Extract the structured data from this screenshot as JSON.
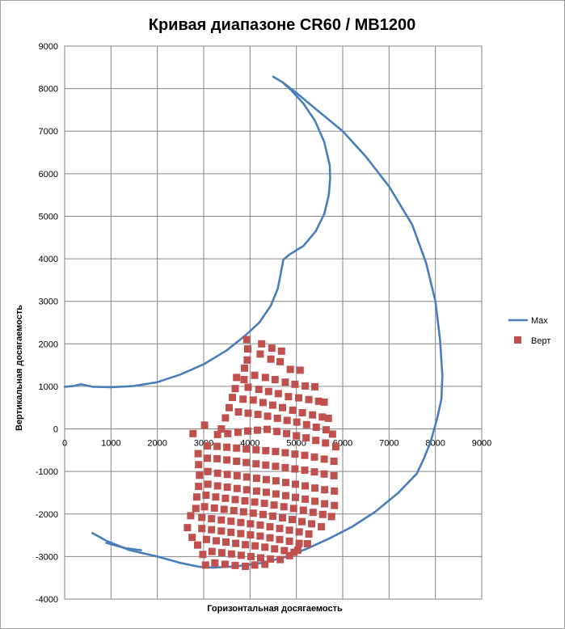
{
  "chart_data": {
    "type": "scatter",
    "title": "Кривая диапазоне CR60 / MB1200",
    "xlabel": "Горизонтальная  досягаемость",
    "ylabel": "Вертикальная  досягаемость",
    "xlim": [
      0,
      9000
    ],
    "ylim": [
      -4000,
      9000
    ],
    "x_ticks": [
      "0",
      "1000",
      "2000",
      "3000",
      "4000",
      "5000",
      "6000",
      "7000",
      "8000",
      "9000"
    ],
    "y_ticks": [
      "9000",
      "8000",
      "7000",
      "6000",
      "5000",
      "4000",
      "3000",
      "2000",
      "1000",
      "0",
      "-1000",
      "-2000",
      "-3000",
      "-4000"
    ],
    "grid": true,
    "legend_position": "right",
    "series": [
      {
        "name": "Max",
        "type": "line",
        "color": "#4a7ebb",
        "points": [
          [
            4500,
            8280
          ],
          [
            4700,
            8150
          ],
          [
            4900,
            7950
          ],
          [
            5150,
            7650
          ],
          [
            5400,
            7250
          ],
          [
            5600,
            6750
          ],
          [
            5720,
            6200
          ],
          [
            5730,
            5900
          ],
          [
            5700,
            5500
          ],
          [
            5600,
            5050
          ],
          [
            5420,
            4650
          ],
          [
            5150,
            4300
          ],
          [
            4850,
            4100
          ],
          [
            4720,
            3980
          ],
          [
            4680,
            3750
          ],
          [
            4600,
            3300
          ],
          [
            4450,
            2900
          ],
          [
            4200,
            2500
          ],
          [
            3900,
            2200
          ],
          [
            3500,
            1850
          ],
          [
            3000,
            1520
          ],
          [
            2500,
            1280
          ],
          [
            2000,
            1100
          ],
          [
            1500,
            1010
          ],
          [
            1000,
            980
          ],
          [
            600,
            990
          ],
          [
            350,
            1050
          ],
          [
            200,
            1010
          ],
          [
            0,
            990
          ]
        ]
      },
      {
        "name": "",
        "type": "line",
        "color": "#4a7ebb",
        "points": [
          [
            4700,
            8150
          ],
          [
            5000,
            7900
          ],
          [
            5500,
            7450
          ],
          [
            6000,
            7000
          ],
          [
            6500,
            6400
          ],
          [
            7000,
            5700
          ],
          [
            7500,
            4800
          ],
          [
            7800,
            3900
          ],
          [
            8000,
            3000
          ],
          [
            8100,
            2100
          ],
          [
            8150,
            1250
          ],
          [
            8130,
            700
          ],
          [
            8050,
            300
          ],
          [
            7900,
            -300
          ],
          [
            7750,
            -700
          ],
          [
            7600,
            -1050
          ],
          [
            7200,
            -1500
          ],
          [
            6700,
            -1950
          ],
          [
            6200,
            -2300
          ],
          [
            5700,
            -2580
          ],
          [
            5200,
            -2830
          ],
          [
            4700,
            -3030
          ],
          [
            4200,
            -3160
          ],
          [
            3700,
            -3230
          ],
          [
            3200,
            -3260
          ],
          [
            2900,
            -3240
          ],
          [
            2500,
            -3150
          ],
          [
            2000,
            -3000
          ],
          [
            1400,
            -2850
          ],
          [
            900,
            -2630
          ],
          [
            600,
            -2450
          ]
        ]
      },
      {
        "name": "",
        "type": "line",
        "color": "#4a7ebb",
        "points": [
          [
            900,
            -2680
          ],
          [
            1300,
            -2800
          ],
          [
            1650,
            -2850
          ]
        ]
      },
      {
        "name": "Верт",
        "type": "scatter",
        "color": "#c0504d",
        "points": [
          [
            3930,
            2100
          ],
          [
            3950,
            1880
          ],
          [
            3940,
            1620
          ],
          [
            3880,
            1430
          ],
          [
            3870,
            1160
          ],
          [
            4250,
            2000
          ],
          [
            4470,
            1900
          ],
          [
            4680,
            1830
          ],
          [
            4220,
            1760
          ],
          [
            4450,
            1640
          ],
          [
            4650,
            1580
          ],
          [
            4870,
            1400
          ],
          [
            5080,
            1380
          ],
          [
            4100,
            1260
          ],
          [
            4330,
            1210
          ],
          [
            4540,
            1160
          ],
          [
            4760,
            1100
          ],
          [
            4970,
            1050
          ],
          [
            5190,
            1010
          ],
          [
            5400,
            990
          ],
          [
            3710,
            1210
          ],
          [
            3680,
            950
          ],
          [
            3620,
            740
          ],
          [
            3550,
            500
          ],
          [
            3470,
            260
          ],
          [
            3380,
            0
          ],
          [
            3960,
            980
          ],
          [
            4190,
            930
          ],
          [
            4400,
            880
          ],
          [
            4610,
            830
          ],
          [
            4830,
            760
          ],
          [
            5050,
            730
          ],
          [
            5270,
            690
          ],
          [
            5480,
            650
          ],
          [
            5600,
            630
          ],
          [
            3850,
            700
          ],
          [
            4070,
            680
          ],
          [
            4280,
            620
          ],
          [
            4490,
            560
          ],
          [
            4700,
            500
          ],
          [
            4920,
            440
          ],
          [
            5130,
            380
          ],
          [
            5350,
            330
          ],
          [
            5560,
            280
          ],
          [
            5690,
            250
          ],
          [
            3750,
            400
          ],
          [
            3960,
            370
          ],
          [
            4170,
            340
          ],
          [
            4380,
            300
          ],
          [
            4590,
            250
          ],
          [
            4800,
            200
          ],
          [
            5010,
            160
          ],
          [
            5220,
            100
          ],
          [
            5430,
            40
          ],
          [
            5640,
            -20
          ],
          [
            5780,
            -120
          ],
          [
            3020,
            90
          ],
          [
            3300,
            -130
          ],
          [
            3520,
            -110
          ],
          [
            3740,
            -80
          ],
          [
            3950,
            -50
          ],
          [
            4160,
            -30
          ],
          [
            4370,
            -10
          ],
          [
            4580,
            -60
          ],
          [
            4790,
            -110
          ],
          [
            5000,
            -160
          ],
          [
            5210,
            -210
          ],
          [
            5420,
            -270
          ],
          [
            5630,
            -330
          ],
          [
            5850,
            -420
          ],
          [
            2770,
            -110
          ],
          [
            2880,
            -580
          ],
          [
            3080,
            -400
          ],
          [
            3290,
            -410
          ],
          [
            3500,
            -430
          ],
          [
            3710,
            -450
          ],
          [
            3920,
            -470
          ],
          [
            4130,
            -490
          ],
          [
            4340,
            -510
          ],
          [
            4550,
            -530
          ],
          [
            4760,
            -560
          ],
          [
            4970,
            -590
          ],
          [
            5180,
            -620
          ],
          [
            5390,
            -660
          ],
          [
            5600,
            -710
          ],
          [
            5810,
            -760
          ],
          [
            2890,
            -840
          ],
          [
            3080,
            -690
          ],
          [
            3290,
            -700
          ],
          [
            3500,
            -730
          ],
          [
            3710,
            -760
          ],
          [
            3920,
            -790
          ],
          [
            4130,
            -820
          ],
          [
            4340,
            -850
          ],
          [
            4550,
            -880
          ],
          [
            4760,
            -910
          ],
          [
            4970,
            -940
          ],
          [
            5180,
            -970
          ],
          [
            5390,
            -1010
          ],
          [
            5600,
            -1060
          ],
          [
            5810,
            -1100
          ],
          [
            2910,
            -1090
          ],
          [
            3090,
            -1000
          ],
          [
            3300,
            -1040
          ],
          [
            3510,
            -1070
          ],
          [
            3720,
            -1100
          ],
          [
            3930,
            -1130
          ],
          [
            4140,
            -1160
          ],
          [
            4350,
            -1190
          ],
          [
            4560,
            -1220
          ],
          [
            4770,
            -1260
          ],
          [
            4980,
            -1300
          ],
          [
            5190,
            -1340
          ],
          [
            5400,
            -1390
          ],
          [
            5610,
            -1430
          ],
          [
            5820,
            -1460
          ],
          [
            2890,
            -1350
          ],
          [
            3090,
            -1300
          ],
          [
            3300,
            -1340
          ],
          [
            3510,
            -1370
          ],
          [
            3720,
            -1400
          ],
          [
            3930,
            -1430
          ],
          [
            4140,
            -1460
          ],
          [
            4350,
            -1490
          ],
          [
            4560,
            -1530
          ],
          [
            4770,
            -1570
          ],
          [
            4980,
            -1610
          ],
          [
            5190,
            -1650
          ],
          [
            5400,
            -1700
          ],
          [
            5610,
            -1760
          ],
          [
            5820,
            -1800
          ],
          [
            2850,
            -1600
          ],
          [
            3050,
            -1560
          ],
          [
            3260,
            -1600
          ],
          [
            3470,
            -1630
          ],
          [
            3680,
            -1660
          ],
          [
            3890,
            -1690
          ],
          [
            4100,
            -1720
          ],
          [
            4310,
            -1750
          ],
          [
            4520,
            -1790
          ],
          [
            4730,
            -1830
          ],
          [
            4940,
            -1870
          ],
          [
            5150,
            -1910
          ],
          [
            5360,
            -1960
          ],
          [
            5570,
            -2010
          ],
          [
            5760,
            -2060
          ],
          [
            2830,
            -1870
          ],
          [
            3020,
            -1830
          ],
          [
            3230,
            -1860
          ],
          [
            3440,
            -1890
          ],
          [
            3650,
            -1920
          ],
          [
            3860,
            -1950
          ],
          [
            4070,
            -1980
          ],
          [
            4280,
            -2010
          ],
          [
            4490,
            -2050
          ],
          [
            4700,
            -2090
          ],
          [
            4910,
            -2130
          ],
          [
            5120,
            -2180
          ],
          [
            5330,
            -2230
          ],
          [
            5540,
            -2300
          ],
          [
            2720,
            -2040
          ],
          [
            2650,
            -2320
          ],
          [
            2960,
            -2080
          ],
          [
            3170,
            -2110
          ],
          [
            3380,
            -2140
          ],
          [
            3590,
            -2170
          ],
          [
            3800,
            -2200
          ],
          [
            4010,
            -2230
          ],
          [
            4220,
            -2260
          ],
          [
            4430,
            -2300
          ],
          [
            4640,
            -2340
          ],
          [
            4850,
            -2380
          ],
          [
            5060,
            -2420
          ],
          [
            5270,
            -2470
          ],
          [
            2750,
            -2550
          ],
          [
            2960,
            -2340
          ],
          [
            3170,
            -2370
          ],
          [
            3380,
            -2400
          ],
          [
            3590,
            -2430
          ],
          [
            3800,
            -2460
          ],
          [
            4010,
            -2490
          ],
          [
            4220,
            -2520
          ],
          [
            4430,
            -2560
          ],
          [
            4640,
            -2600
          ],
          [
            4850,
            -2640
          ],
          [
            5060,
            -2690
          ],
          [
            5240,
            -2700
          ],
          [
            2870,
            -2730
          ],
          [
            3060,
            -2600
          ],
          [
            3270,
            -2630
          ],
          [
            3480,
            -2660
          ],
          [
            3690,
            -2690
          ],
          [
            3900,
            -2720
          ],
          [
            4110,
            -2750
          ],
          [
            4320,
            -2780
          ],
          [
            4530,
            -2820
          ],
          [
            4740,
            -2860
          ],
          [
            4950,
            -2900
          ],
          [
            5030,
            -2850
          ],
          [
            2980,
            -2950
          ],
          [
            3180,
            -2880
          ],
          [
            3390,
            -2910
          ],
          [
            3600,
            -2940
          ],
          [
            3810,
            -2970
          ],
          [
            4020,
            -3000
          ],
          [
            4230,
            -3030
          ],
          [
            4440,
            -3060
          ],
          [
            4650,
            -3070
          ],
          [
            4850,
            -2980
          ],
          [
            3040,
            -3200
          ],
          [
            3240,
            -3150
          ],
          [
            3460,
            -3180
          ],
          [
            3680,
            -3210
          ],
          [
            3900,
            -3230
          ],
          [
            4100,
            -3200
          ],
          [
            4320,
            -3180
          ]
        ]
      }
    ]
  }
}
